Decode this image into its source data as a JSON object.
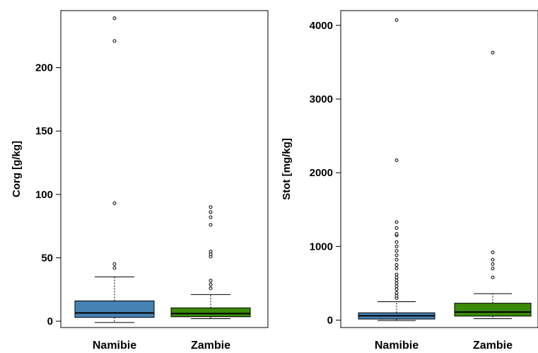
{
  "chart_data": [
    {
      "type": "box",
      "ylabel": "Corg [g/kg]",
      "ylim": [
        -5,
        245
      ],
      "yticks": [
        0,
        50,
        100,
        150,
        200
      ],
      "categories": [
        "Namibie",
        "Zambie"
      ],
      "boxes": [
        {
          "category": "Namibie",
          "color": "#4682b4",
          "whisker_low": -1,
          "q1": 3,
          "median": 6.5,
          "q3": 16,
          "whisker_high": 35,
          "outliers": [
            42,
            45,
            93,
            221,
            239
          ]
        },
        {
          "category": "Zambie",
          "color": "#3a8a0a",
          "whisker_low": 2,
          "q1": 3.5,
          "median": 6,
          "q3": 10.5,
          "whisker_high": 21,
          "outliers": [
            26,
            29,
            32,
            51,
            53,
            55,
            76,
            82,
            86,
            90
          ]
        }
      ]
    },
    {
      "type": "box",
      "ylabel": "Stot [mg/kg]",
      "ylim": [
        -100,
        4200
      ],
      "yticks": [
        0,
        1000,
        2000,
        3000,
        4000
      ],
      "categories": [
        "Namibie",
        "Zambie"
      ],
      "boxes": [
        {
          "category": "Namibie",
          "color": "#4682b4",
          "whisker_low": -5,
          "q1": 15,
          "median": 60,
          "q3": 100,
          "whisker_high": 250,
          "outliers": [
            300,
            330,
            370,
            420,
            460,
            500,
            540,
            580,
            620,
            700,
            750,
            820,
            880,
            940,
            1000,
            1060,
            1150,
            1170,
            1250,
            1330,
            2170,
            4070
          ]
        },
        {
          "category": "Zambie",
          "color": "#3a8a0a",
          "whisker_low": 20,
          "q1": 55,
          "median": 110,
          "q3": 230,
          "whisker_high": 360,
          "outliers": [
            580,
            700,
            760,
            820,
            920,
            3630
          ]
        }
      ]
    }
  ]
}
